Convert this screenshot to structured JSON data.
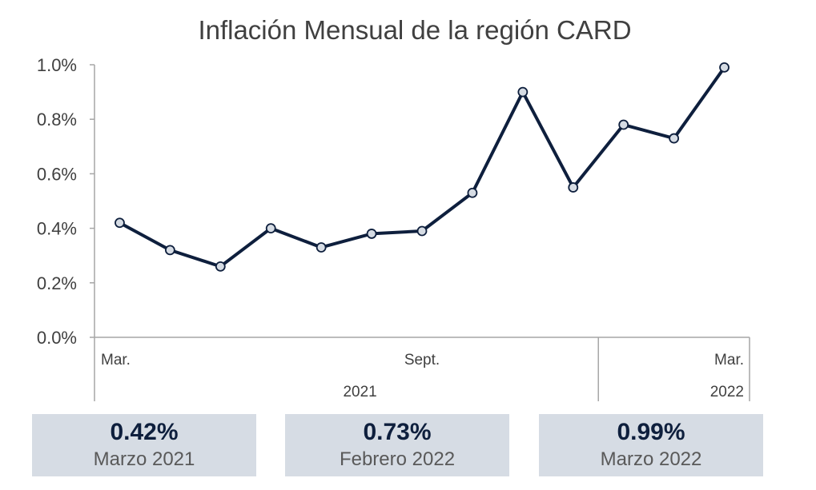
{
  "chart_data": {
    "type": "line",
    "title": "Inflación Mensual de la región CARD",
    "xlabel": "",
    "ylabel": "",
    "ylim": [
      0,
      1.0
    ],
    "y_ticks": [
      "0.0%",
      "0.2%",
      "0.4%",
      "0.6%",
      "0.8%",
      "1.0%"
    ],
    "x_month_labels": [
      "Mar.",
      "Sept.",
      "Mar."
    ],
    "x_year_labels": [
      "2021",
      "2022"
    ],
    "grid": false,
    "series": [
      {
        "color": "#0e1f3d",
        "x": [
          "2021-03",
          "2021-04",
          "2021-05",
          "2021-06",
          "2021-07",
          "2021-08",
          "2021-09",
          "2021-10",
          "2021-11",
          "2021-12",
          "2022-01",
          "2022-02",
          "2022-03"
        ],
        "values": [
          0.42,
          0.32,
          0.26,
          0.4,
          0.33,
          0.38,
          0.39,
          0.53,
          0.9,
          0.55,
          0.78,
          0.73,
          0.99
        ]
      }
    ]
  },
  "summary": [
    {
      "value": "0.42%",
      "label": "Marzo 2021"
    },
    {
      "value": "0.73%",
      "label": "Febrero 2022"
    },
    {
      "value": "0.99%",
      "label": "Marzo 2022"
    }
  ],
  "colors": {
    "line": "#0e1f3d",
    "marker_fill": "#d6dce4",
    "box_bg": "#d6dce4"
  }
}
